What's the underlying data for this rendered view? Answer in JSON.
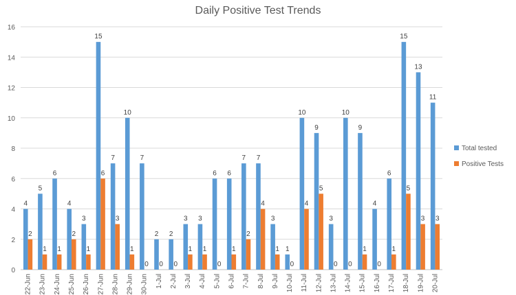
{
  "chart_data": {
    "type": "bar",
    "title": "Daily Positive Test Trends",
    "xlabel": "",
    "ylabel": "",
    "ylim": [
      0,
      16
    ],
    "yticks": [
      0,
      2,
      4,
      6,
      8,
      10,
      12,
      14,
      16
    ],
    "grid": true,
    "legend_position": "right",
    "categories": [
      "22-Jun",
      "23-Jun",
      "24-Jun",
      "25-Jun",
      "26-Jun",
      "27-Jun",
      "28-Jun",
      "29-Jun",
      "30-Jun",
      "1-Jul",
      "2-Jul",
      "3-Jul",
      "4-Jul",
      "5-Jul",
      "6-Jul",
      "7-Jul",
      "8-Jul",
      "9-Jul",
      "10-Jul",
      "11-Jul",
      "12-Jul",
      "13-Jul",
      "14-Jul",
      "15-Jul",
      "16-Jul",
      "17-Jul",
      "18-Jul",
      "19-Jul",
      "20-Jul"
    ],
    "series": [
      {
        "name": "Total tested",
        "color": "#5b9bd5",
        "values": [
          4,
          5,
          6,
          4,
          3,
          15,
          7,
          10,
          7,
          2,
          2,
          3,
          3,
          6,
          6,
          7,
          7,
          3,
          1,
          10,
          9,
          3,
          10,
          9,
          4,
          6,
          15,
          13,
          11
        ]
      },
      {
        "name": "Positive Tests",
        "color": "#ed7d31",
        "values": [
          2,
          1,
          1,
          2,
          1,
          6,
          3,
          1,
          0,
          0,
          0,
          1,
          1,
          0,
          1,
          2,
          4,
          1,
          0,
          4,
          5,
          0,
          0,
          1,
          0,
          1,
          5,
          3,
          3
        ]
      }
    ]
  }
}
